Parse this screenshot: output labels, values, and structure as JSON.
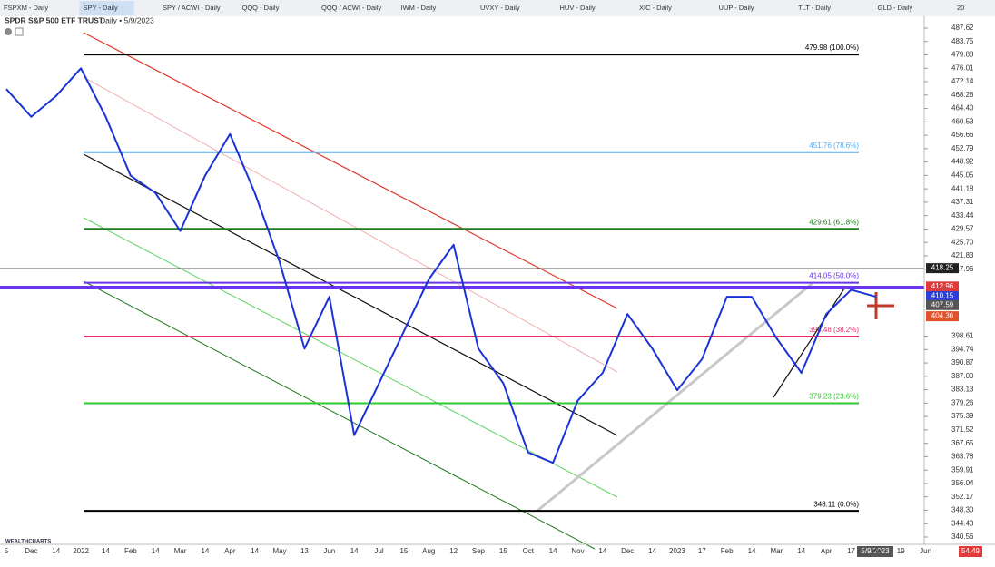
{
  "toolbar": {
    "tabs": [
      "FSPXM - Daily",
      "SPY - Daily",
      "SPY / ACWI - Daily",
      "QQQ - Daily",
      "QQQ / ACWI - Daily",
      "IWM - Daily",
      "UVXY - Daily",
      "HUV - Daily",
      "XIC - Daily",
      "UUP - Daily",
      "TLT - Daily",
      "GLD - Daily",
      "20"
    ]
  },
  "chart_data": {
    "type": "line",
    "title": "SPDR S&P 500 ETF TRUST",
    "subtitle": "Daily • 5/9/2023",
    "categories": [
      "5",
      "Dec",
      "14",
      "2022",
      "14",
      "Feb",
      "14",
      "Mar",
      "14",
      "Apr",
      "14",
      "May",
      "13",
      "Jun",
      "14",
      "Jul",
      "15",
      "Aug",
      "12",
      "Sep",
      "15",
      "Oct",
      "14",
      "Nov",
      "14",
      "Dec",
      "14",
      "2023",
      "17",
      "Feb",
      "14",
      "Mar",
      "14",
      "Apr",
      "17",
      "Ma",
      "19",
      "Jun"
    ],
    "series": [
      {
        "name": "SPY",
        "color": "#1a33d6",
        "values": [
          470,
          462,
          468,
          476,
          462,
          445,
          440,
          429,
          445,
          457,
          440,
          420,
          395,
          410,
          370,
          385,
          400,
          415,
          425,
          395,
          385,
          365,
          362,
          380,
          388,
          405,
          395,
          383,
          392,
          410,
          410,
          398,
          388,
          405,
          412,
          410,
          null,
          null
        ]
      }
    ],
    "ylim": [
      338.46,
      490.5
    ],
    "yticks": [
      487.62,
      483.75,
      479.88,
      476.01,
      472.14,
      468.28,
      {
        "value": 464.4,
        "label": "464.40"
      },
      460.53,
      456.66,
      452.79,
      448.92,
      445.05,
      441.18,
      437.31,
      433.44,
      429.57,
      {
        "value": 425.7,
        "label": "425.70"
      },
      421.83,
      417.96,
      398.61,
      394.74,
      390.87,
      {
        "value": 387,
        "label": "387.00"
      },
      383.13,
      379.26,
      375.39,
      371.52,
      367.65,
      363.78,
      359.91,
      356.04,
      352.17,
      {
        "value": 348.3,
        "label": "348.30"
      },
      344.43,
      340.56
    ],
    "levels": [
      {
        "value": 479.98,
        "label": "479.98 (100.0%)",
        "color": "#000000"
      },
      {
        "value": 451.76,
        "label": "451.76 (78.6%)",
        "color": "#5aa9e6"
      },
      {
        "value": 429.61,
        "label": "429.61 (61.8%)",
        "color": "#1e7a1e"
      },
      {
        "value": 414.05,
        "label": "414.05 (50.0%)",
        "color": "#6a35e8"
      },
      {
        "value": 398.48,
        "label": "398.48 (38.2%)",
        "color": "#e0306a"
      },
      {
        "value": 379.23,
        "label": "379.23 (23.6%)",
        "color": "#2ec82e"
      },
      {
        "value": 348.11,
        "label": "348.11 (0.0%)",
        "color": "#000000"
      }
    ],
    "price_badges": [
      {
        "value": 418.25,
        "color": "#222222"
      },
      {
        "value": 412.96,
        "color": "#e03a3a"
      },
      {
        "value": 410.15,
        "color": "#2a3fd8"
      },
      {
        "value": 407.59,
        "color": "#555555"
      },
      {
        "value": 404.36,
        "color": "#e0502a"
      }
    ]
  },
  "watermark": "WEALTHCHARTS",
  "status": {
    "date": "5/9/2023",
    "indicator": 54.49
  }
}
